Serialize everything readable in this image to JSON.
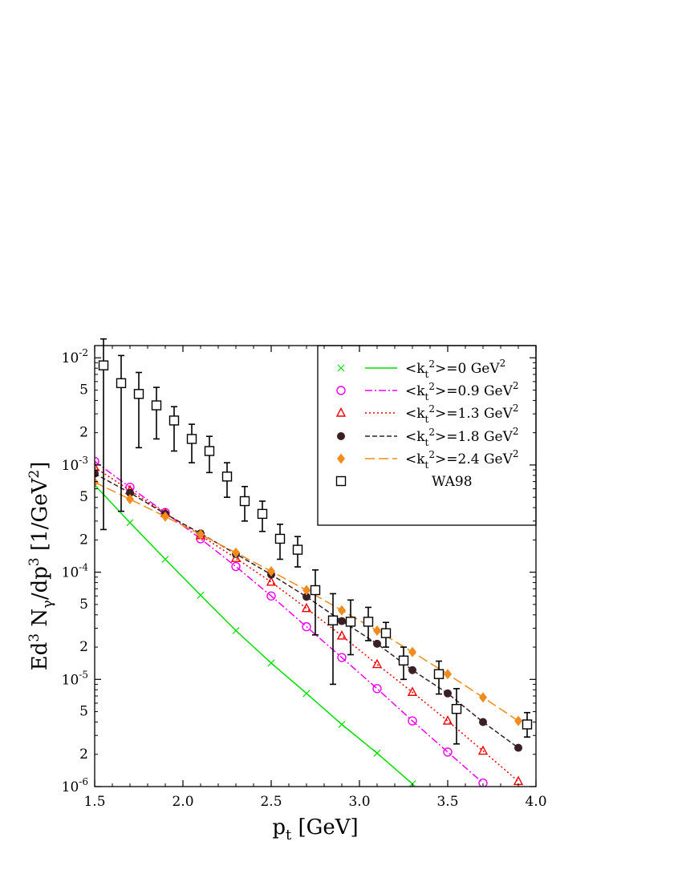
{
  "chart_data": {
    "type": "line",
    "xlabel_main": "p",
    "xlabel_sub": "t",
    "xlabel_unit": " [GeV]",
    "ylabel_parts": {
      "a": "Ed",
      "b": "3",
      "c": " N",
      "d": "γ",
      "e": "/dp",
      "f": "3",
      "g": " [1/GeV",
      "h": "2",
      "i": "]"
    },
    "xlim": [
      1.5,
      4.0
    ],
    "ylim": [
      1e-06,
      0.013
    ],
    "y_scale": "log",
    "grid": false,
    "legend_position": "top-right",
    "x_ticks": [
      "1.5",
      "2.0",
      "2.5",
      "3.0",
      "3.5",
      "4.0"
    ],
    "y_major_ticks": [
      {
        "base": "10",
        "exp": "-2"
      },
      {
        "base": "10",
        "exp": "-3"
      },
      {
        "base": "10",
        "exp": "-4"
      },
      {
        "base": "10",
        "exp": "-5"
      },
      {
        "base": "10",
        "exp": "-6"
      }
    ],
    "y_minor_labels": [
      "5",
      "2"
    ],
    "series": [
      {
        "name_a": "<k",
        "name_b": "t",
        "name_c": "2",
        "name_d": ">=0 GeV",
        "name_e": "2",
        "color": "#00dd00",
        "marker": "cross",
        "dash": "",
        "x": [
          1.5,
          1.7,
          1.9,
          2.1,
          2.3,
          2.5,
          2.7,
          2.9,
          3.1,
          3.3
        ],
        "y": [
          0.00065,
          0.00029,
          0.000132,
          6.1e-05,
          2.85e-05,
          1.42e-05,
          7.4e-06,
          3.8e-06,
          2.05e-06,
          1.06e-06
        ]
      },
      {
        "name_a": "<k",
        "name_b": "t",
        "name_c": "2",
        "name_d": ">=0.9 GeV",
        "name_e": "2",
        "color": "#ee00ee",
        "marker": "circle",
        "dash": "9,3,2,3",
        "x": [
          1.5,
          1.7,
          1.9,
          2.1,
          2.3,
          2.5,
          2.7,
          2.9,
          3.1,
          3.3,
          3.5,
          3.7
        ],
        "y": [
          0.00108,
          0.00062,
          0.00036,
          0.000205,
          0.000113,
          6e-05,
          3.1e-05,
          1.6e-05,
          8.2e-06,
          4.1e-06,
          2.1e-06,
          1.08e-06
        ]
      },
      {
        "name_a": "<k",
        "name_b": "t",
        "name_c": "2",
        "name_d": ">=1.3 GeV",
        "name_e": "2",
        "color": "#ee0000",
        "marker": "triangle",
        "dash": "2,3",
        "x": [
          1.5,
          1.7,
          1.9,
          2.1,
          2.3,
          2.5,
          2.7,
          2.9,
          3.1,
          3.3,
          3.5,
          3.7,
          3.9
        ],
        "y": [
          0.00095,
          0.00058,
          0.000355,
          0.00022,
          0.000135,
          8.1e-05,
          4.6e-05,
          2.55e-05,
          1.38e-05,
          7.6e-06,
          4.1e-06,
          2.15e-06,
          1.12e-06
        ]
      },
      {
        "name_a": "<k",
        "name_b": "t",
        "name_c": "2",
        "name_d": ">=1.8 GeV",
        "name_e": "2",
        "color": "#3a1f24",
        "marker": "dot",
        "dash": "6,3",
        "x": [
          1.5,
          1.7,
          1.9,
          2.1,
          2.3,
          2.5,
          2.7,
          2.9,
          3.1,
          3.3,
          3.5,
          3.7,
          3.9
        ],
        "y": [
          0.00083,
          0.00055,
          0.00035,
          0.00023,
          0.000148,
          9.5e-05,
          5.9e-05,
          3.5e-05,
          2.15e-05,
          1.22e-05,
          7.4e-06,
          4e-06,
          2.3e-06
        ]
      },
      {
        "name_a": "<k",
        "name_b": "t",
        "name_c": "2",
        "name_d": ">=2.4 GeV",
        "name_e": "2",
        "color": "#f08c1e",
        "marker": "diamond",
        "dash": "12,5",
        "x": [
          1.5,
          1.7,
          1.9,
          2.1,
          2.3,
          2.5,
          2.7,
          2.9,
          3.1,
          3.3,
          3.5,
          3.7,
          3.9
        ],
        "y": [
          0.00069,
          0.00048,
          0.00033,
          0.000225,
          0.000152,
          0.000102,
          6.8e-05,
          4.4e-05,
          2.85e-05,
          1.8e-05,
          1.12e-05,
          6.8e-06,
          4.1e-06
        ]
      }
    ],
    "data_points": {
      "name": "WA98",
      "color": "#000000",
      "marker": "square",
      "x": [
        1.55,
        1.65,
        1.75,
        1.85,
        1.95,
        2.05,
        2.15,
        2.25,
        2.35,
        2.45,
        2.55,
        2.65,
        2.75,
        2.85,
        2.95,
        3.05,
        3.15,
        3.25,
        3.45,
        3.55,
        3.95
      ],
      "y": [
        0.0085,
        0.0058,
        0.0046,
        0.0036,
        0.0026,
        0.00175,
        0.00135,
        0.00078,
        0.00046,
        0.00035,
        0.000205,
        0.000162,
        6.8e-05,
        3.55e-05,
        3.45e-05,
        3.45e-05,
        2.7e-05,
        1.5e-05,
        1.12e-05,
        5.3e-06,
        3.8e-06
      ],
      "err_low": [
        0.00025,
        0.00037,
        0.00145,
        0.00175,
        0.00135,
        0.00105,
        0.00085,
        0.0005,
        0.0003,
        0.00024,
        0.000132,
        0.000112,
        2.6e-05,
        9e-06,
        1.7e-05,
        2.3e-05,
        2e-05,
        1e-05,
        7.3e-06,
        2.5e-06,
        2.9e-06
      ],
      "err_high": [
        0.015,
        0.0105,
        0.0073,
        0.0053,
        0.0035,
        0.0024,
        0.00185,
        0.00105,
        0.00063,
        0.00046,
        0.00028,
        0.000215,
        0.000105,
        6.3e-05,
        5.5e-05,
        4.7e-05,
        3.4e-05,
        2e-05,
        1.48e-05,
        8.2e-06,
        4.9e-06
      ]
    }
  }
}
